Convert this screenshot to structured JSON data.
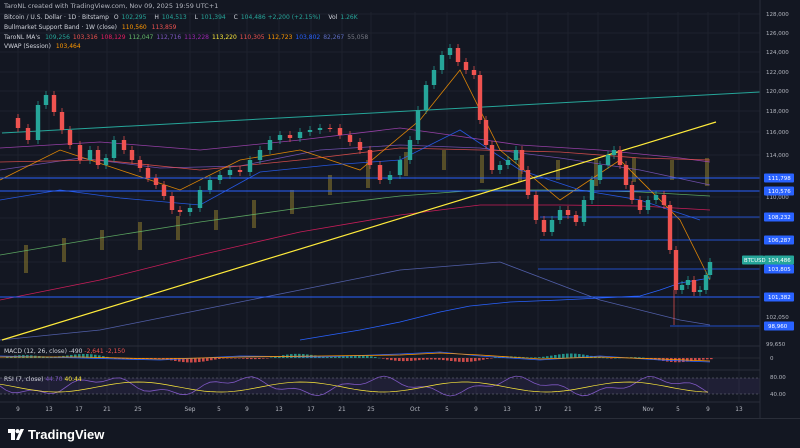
{
  "topbar": {
    "author_line": "TaroNL created with TradingView.com, Nov 09, 2025 19:59 UTC+1"
  },
  "legend": {
    "symbol": "Bitcoin / U.S. Dollar · 1D · Bitstamp",
    "ohlc": [
      {
        "k": "O",
        "v": "102,295"
      },
      {
        "k": "H",
        "v": "104,513"
      },
      {
        "k": "L",
        "v": "101,394"
      },
      {
        "k": "C",
        "v": "104,486 +2,200 (+2.15%)"
      }
    ],
    "vol_label": "Vol",
    "vol_value": "1.26K",
    "bmsb_label": "Bullmarket Support Band · 1W (close)",
    "bmsb_values": [
      "110,560",
      "113,859"
    ],
    "ma_label": "TaroNL MA's",
    "ma_values": [
      {
        "v": "109,256",
        "c": "#26a69a"
      },
      {
        "v": "103,316",
        "c": "#ef5350"
      },
      {
        "v": "108,129",
        "c": "#e91e63"
      },
      {
        "v": "112,047",
        "c": "#66bb6a"
      },
      {
        "v": "112,716",
        "c": "#7e57c2"
      },
      {
        "v": "113,228",
        "c": "#9c27b0"
      },
      {
        "v": "113,220",
        "c": "#ffeb3b"
      },
      {
        "v": "110,305",
        "c": "#ef5350"
      },
      {
        "v": "112,723",
        "c": "#ff9800"
      },
      {
        "v": "103,802",
        "c": "#2962ff"
      },
      {
        "v": "82,267",
        "c": "#5c6bc0"
      },
      {
        "v": "55,058",
        "c": "#787b86"
      }
    ],
    "vwap_label": "VWAP (Session)",
    "vwap_value": "103,464"
  },
  "price_axis": {
    "ticks": [
      "128,000",
      "126,000",
      "124,000",
      "122,000",
      "120,000",
      "118,000",
      "116,000",
      "114,000",
      "112,000",
      "110,000",
      "102,050",
      "99,650",
      "98,450"
    ],
    "tags": [
      {
        "label": "111,798",
        "color": "#2962ff"
      },
      {
        "label": "110,576",
        "color": "#2962ff"
      },
      {
        "label": "108,232",
        "color": "#2962ff"
      },
      {
        "label": "106,287",
        "color": "#2962ff"
      },
      {
        "label": "104,486",
        "color": "#26a69a"
      },
      {
        "label": "103,805",
        "color": "#2962ff"
      },
      {
        "label": "101,382",
        "color": "#2962ff"
      },
      {
        "label": "98,960",
        "color": "#2962ff"
      }
    ],
    "symbol_tag": "BTCUSD"
  },
  "macd": {
    "label": "MACD (12, 26, close)",
    "v1": "-490",
    "v2": "-2,641",
    "v3": "-2,150",
    "axis_tick": "0"
  },
  "rsi": {
    "label": "RSI (7, close)",
    "v1": "44.70",
    "v2": "40.44",
    "axis_ticks": [
      "80.00",
      "40.00"
    ]
  },
  "time_axis": {
    "labels": [
      "9",
      "13",
      "17",
      "21",
      "25",
      "Sep",
      "5",
      "9",
      "13",
      "17",
      "21",
      "25",
      "Oct",
      "5",
      "9",
      "13",
      "17",
      "21",
      "25",
      "Nov",
      "5",
      "9",
      "13"
    ]
  },
  "footer": {
    "brand": "TradingView"
  },
  "colors": {
    "bg": "#131722",
    "up": "#26a69a",
    "down": "#ef5350",
    "hline": "#2962ff",
    "trend_yellow": "#ffeb3b",
    "trend_green": "#26a69a"
  }
}
